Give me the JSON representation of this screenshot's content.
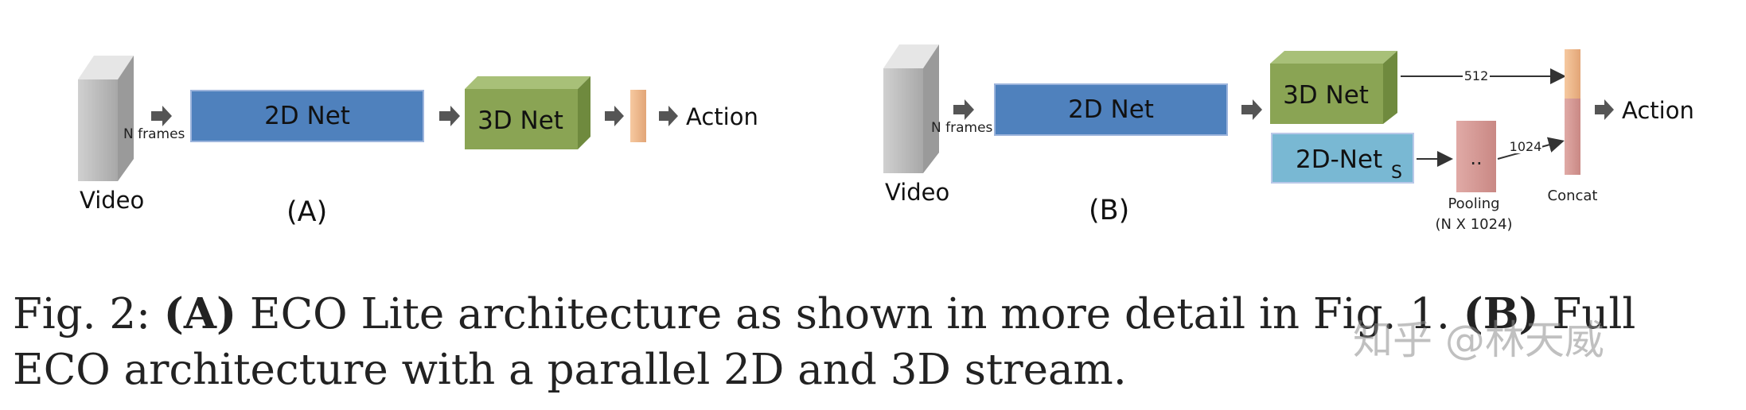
{
  "diagram_a": {
    "video_label": "Video",
    "frames_label": "N frames",
    "net2d_label": "2D Net",
    "net3d_label": "3D Net",
    "action_label": "Action",
    "panel_label": "(A)"
  },
  "diagram_b": {
    "video_label": "Video",
    "frames_label": "N frames",
    "net2d_label": "2D Net",
    "net3d_label": "3D Net",
    "net2ds_label": "2D-Net",
    "net2ds_subscript": "S",
    "edge_512": "512",
    "edge_1024": "1024",
    "pooling_dots": "..",
    "pooling_label": "Pooling",
    "pooling_dims": "(N X 1024)",
    "concat_label": "Concat",
    "action_label": "Action",
    "panel_label": "(B)"
  },
  "caption": {
    "prefix": "Fig. 2: ",
    "part_a": "(A)",
    "text_a": " ECO Lite architecture as shown in more detail in Fig. 1. ",
    "part_b": "(B)",
    "text_b": " Full ECO architecture with a parallel 2D and 3D stream."
  },
  "watermark": "知乎 @林天威",
  "colors": {
    "net2d": "#4f81bd",
    "net3d": "#8aa454",
    "net2ds": "#79b8d3",
    "feature": "#f0b98e",
    "pooling": "#d49a97",
    "video": "#bdbdbd"
  }
}
